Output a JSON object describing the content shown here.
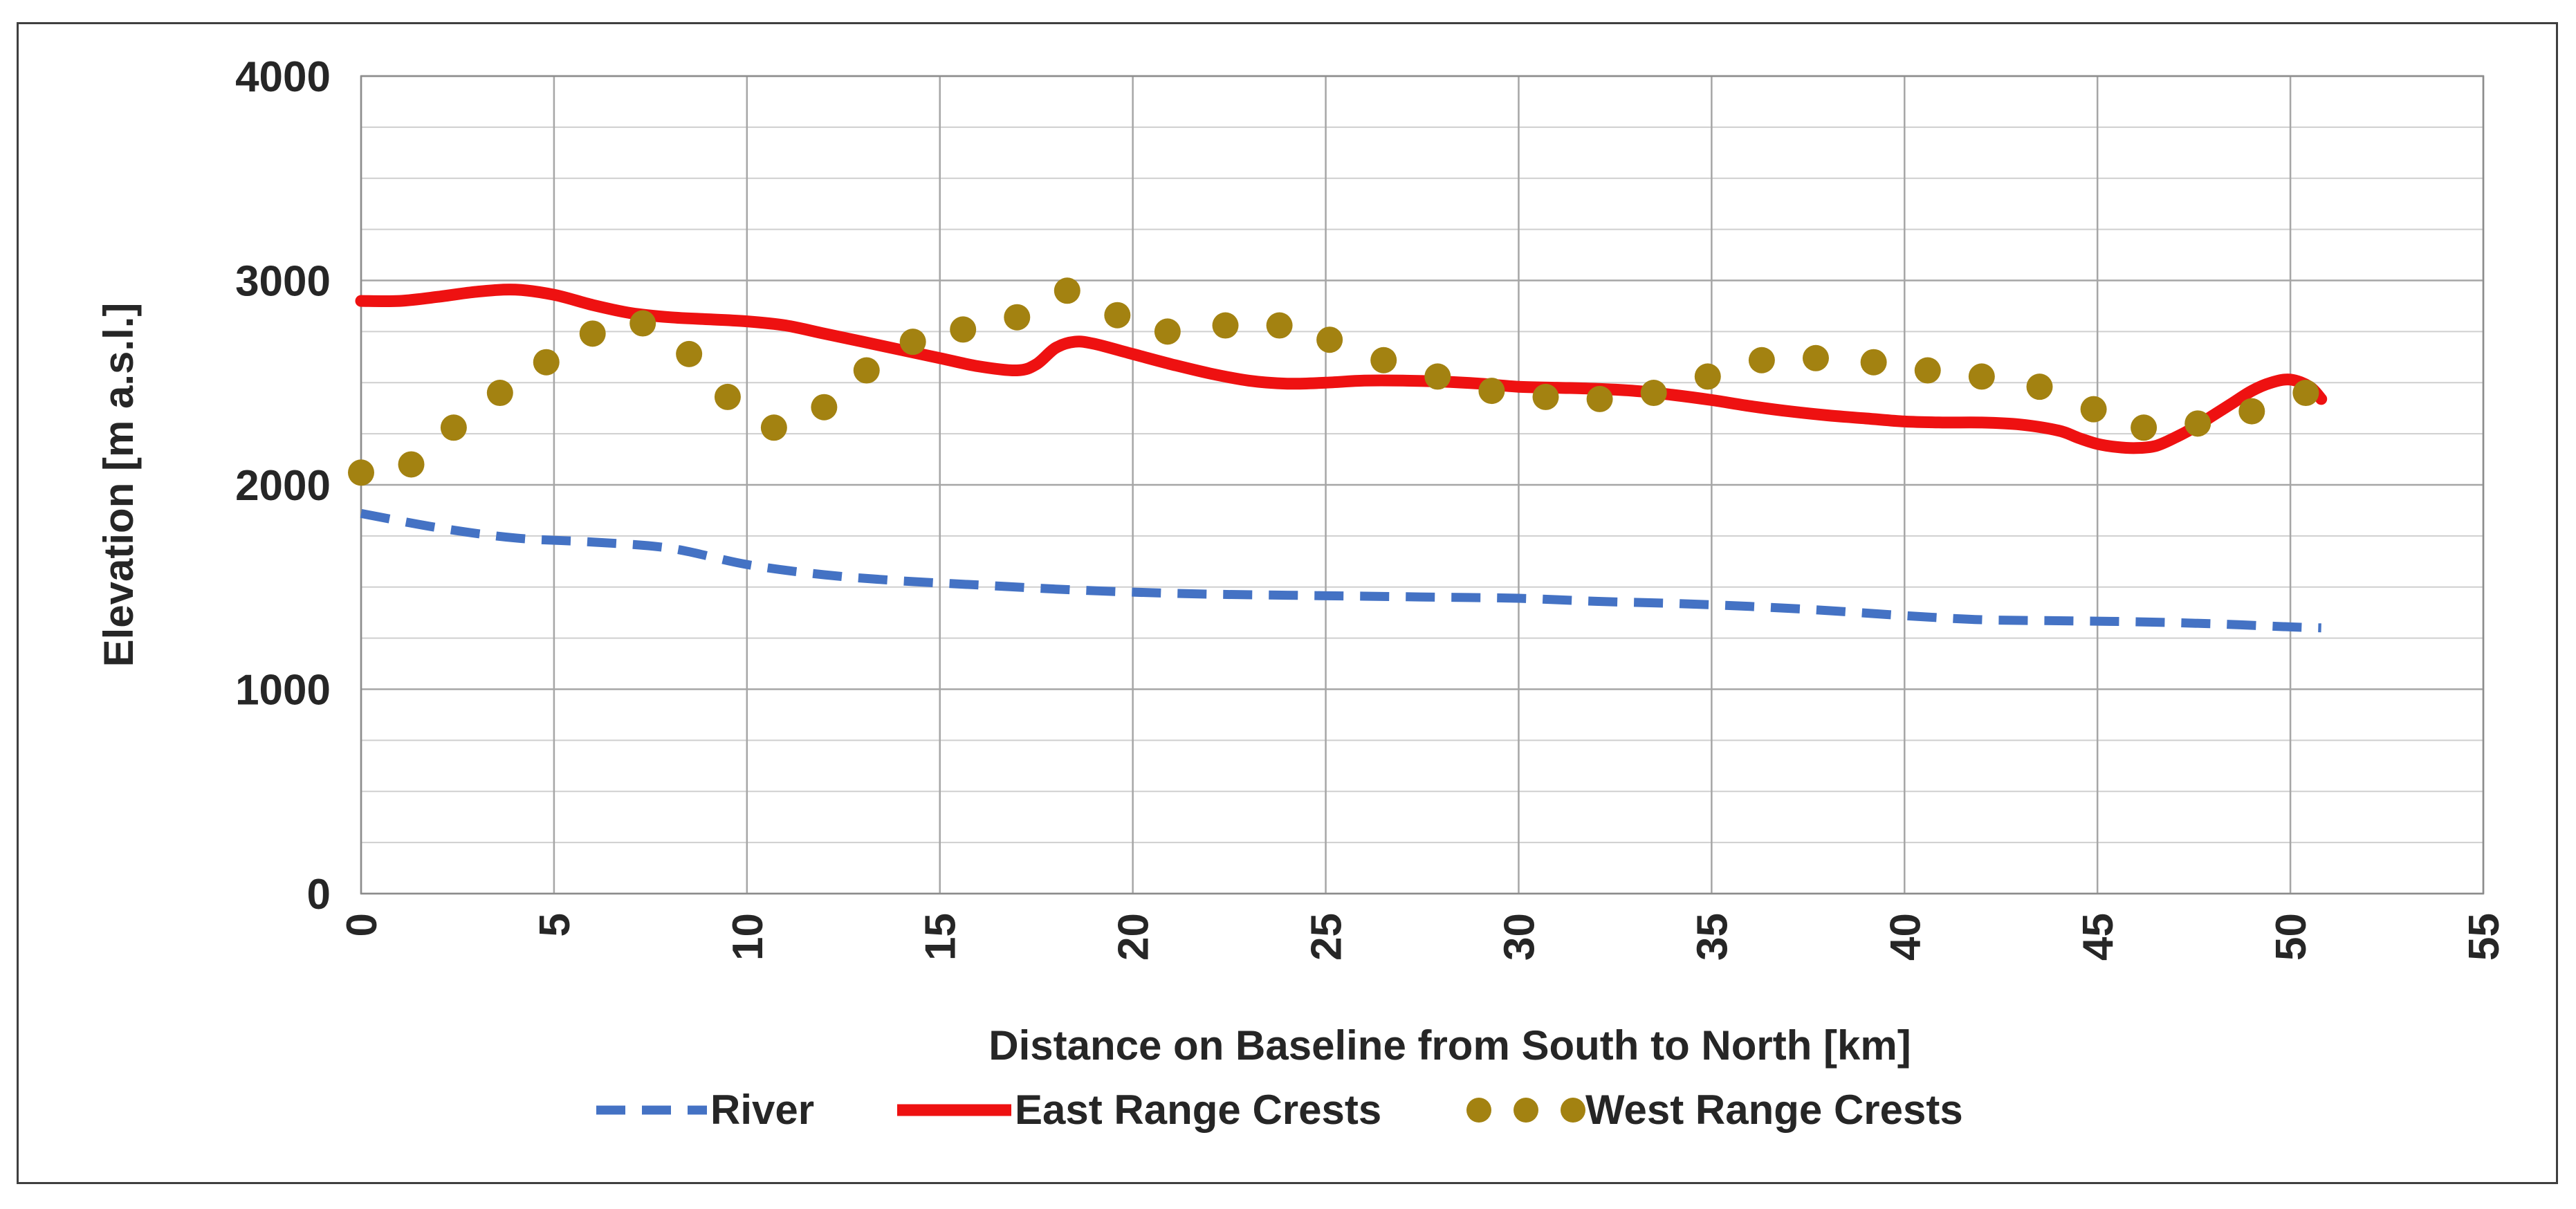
{
  "chart_data": {
    "type": "line",
    "title": "",
    "xlabel": "Distance on Baseline from South to North [km]",
    "ylabel": "Elevation  [m a.s.l.]",
    "xlim": [
      0,
      55
    ],
    "ylim": [
      0,
      4000
    ],
    "x_ticks": [
      0,
      5,
      10,
      15,
      20,
      25,
      30,
      35,
      40,
      45,
      50,
      55
    ],
    "y_ticks": [
      0,
      1000,
      2000,
      3000,
      4000
    ],
    "x_tick_labels": [
      "0",
      "5",
      "10",
      "15",
      "20",
      "25",
      "30",
      "35",
      "40",
      "45",
      "50",
      "55"
    ],
    "y_tick_labels": [
      "0",
      "1000",
      "2000",
      "3000",
      "4000"
    ],
    "grid": true,
    "legend_position": "bottom",
    "series": [
      {
        "name": "River",
        "style": "dashed",
        "color": "#4472C4",
        "x": [
          0,
          2,
          4,
          6,
          8,
          10,
          12,
          14,
          16,
          18,
          20,
          22,
          24,
          26,
          28,
          30,
          32,
          34,
          36,
          38,
          40,
          42,
          44,
          46,
          48,
          50,
          50.8
        ],
        "y": [
          1860,
          1790,
          1740,
          1720,
          1690,
          1610,
          1560,
          1530,
          1510,
          1490,
          1475,
          1465,
          1460,
          1455,
          1450,
          1445,
          1430,
          1420,
          1405,
          1385,
          1360,
          1340,
          1335,
          1330,
          1320,
          1305,
          1300
        ]
      },
      {
        "name": "East Range Crests",
        "style": "solid",
        "color": "#EE1111",
        "x": [
          0,
          1,
          2,
          3,
          4,
          5,
          6,
          7,
          8,
          9,
          10,
          11,
          12,
          13,
          14,
          15,
          16,
          17,
          17.5,
          18,
          18.5,
          19,
          20,
          21,
          22,
          23,
          24,
          25,
          26,
          27,
          28,
          29,
          30,
          31,
          32,
          33,
          34,
          35,
          36,
          37,
          38,
          39,
          40,
          41,
          42,
          43,
          44,
          44.5,
          45,
          45.5,
          46,
          46.5,
          47,
          47.5,
          48,
          48.5,
          49,
          49.5,
          50,
          50.5,
          50.8
        ],
        "y": [
          2900,
          2900,
          2920,
          2945,
          2955,
          2930,
          2880,
          2840,
          2820,
          2810,
          2800,
          2780,
          2740,
          2700,
          2660,
          2620,
          2580,
          2560,
          2590,
          2670,
          2700,
          2690,
          2640,
          2590,
          2545,
          2510,
          2495,
          2500,
          2510,
          2510,
          2505,
          2495,
          2480,
          2475,
          2470,
          2460,
          2440,
          2415,
          2385,
          2360,
          2340,
          2325,
          2310,
          2305,
          2305,
          2295,
          2265,
          2230,
          2200,
          2185,
          2180,
          2190,
          2230,
          2280,
          2340,
          2400,
          2460,
          2500,
          2515,
          2480,
          2420
        ]
      },
      {
        "name": "West Range Crests",
        "style": "dotted",
        "color": "#A38211",
        "x": [
          0,
          1.3,
          2.4,
          3.6,
          4.8,
          6.0,
          7.3,
          8.5,
          9.5,
          10.7,
          12.0,
          13.1,
          14.3,
          15.6,
          17.0,
          18.3,
          19.6,
          20.9,
          22.4,
          23.8,
          25.1,
          26.5,
          27.9,
          29.3,
          30.7,
          32.1,
          33.5,
          34.9,
          36.3,
          37.7,
          39.2,
          40.6,
          42.0,
          43.5,
          44.9,
          46.2,
          47.6,
          49.0,
          50.4
        ],
        "y": [
          2060,
          2100,
          2280,
          2450,
          2600,
          2740,
          2790,
          2640,
          2430,
          2280,
          2380,
          2560,
          2700,
          2760,
          2820,
          2950,
          2830,
          2750,
          2780,
          2780,
          2710,
          2610,
          2530,
          2460,
          2430,
          2420,
          2450,
          2530,
          2610,
          2620,
          2600,
          2560,
          2530,
          2480,
          2370,
          2280,
          2300,
          2360,
          2450
        ]
      }
    ]
  }
}
